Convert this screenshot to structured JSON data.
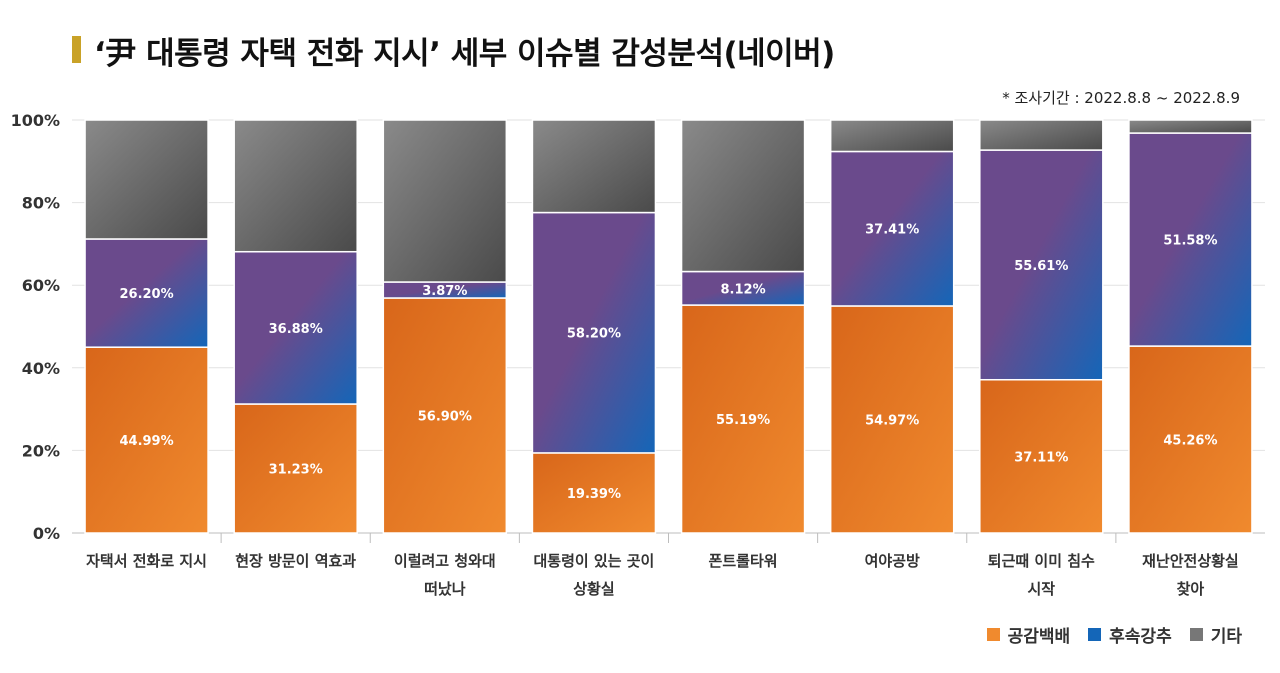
{
  "header": {
    "title": "‘尹 대통령 자택 전화 지시’ 세부 이슈별 감성분석(네이버)",
    "period": "* 조사기간 : 2022.8.8 ~ 2022.8.9"
  },
  "colors": {
    "empathy": "#F08A2E",
    "empathy_dark": "#D8661A",
    "followup_purple": "#6A4A8C",
    "followup_blue": "#1466B8",
    "other_light": "#8A8A8A",
    "other_dark": "#4A4A4A",
    "title_accent": "#C9A227"
  },
  "chart_data": {
    "type": "bar",
    "stacked": true,
    "categories": [
      [
        "자택서 전화로 지시"
      ],
      [
        "현장 방문이 역효과"
      ],
      [
        "이럴려고 청와대",
        "떠났나"
      ],
      [
        "대통령이 있는 곳이",
        "상황실"
      ],
      [
        "폰트롤타워"
      ],
      [
        "여야공방"
      ],
      [
        "퇴근때 이미 침수",
        "시작"
      ],
      [
        "재난안전상황실",
        "찾아"
      ]
    ],
    "series": [
      {
        "name": "공감백배",
        "values": [
          44.99,
          31.23,
          56.9,
          19.39,
          55.19,
          54.97,
          37.11,
          45.26
        ],
        "labels": [
          "44.99%",
          "31.23%",
          "56.90%",
          "19.39%",
          "55.19%",
          "54.97%",
          "37.11%",
          "45.26%"
        ]
      },
      {
        "name": "후속강추",
        "values": [
          26.2,
          36.88,
          3.87,
          58.2,
          8.12,
          37.41,
          55.61,
          51.58
        ],
        "labels": [
          "26.20%",
          "36.88%",
          "3.87%",
          "58.20%",
          "8.12%",
          "37.41%",
          "55.61%",
          "51.58%"
        ]
      },
      {
        "name": "기타",
        "values": [
          28.81,
          31.89,
          39.23,
          22.41,
          36.69,
          7.62,
          7.28,
          3.16
        ]
      }
    ],
    "ylim": [
      0,
      100
    ],
    "yticks": [
      "0%",
      "20%",
      "40%",
      "60%",
      "80%",
      "100%"
    ],
    "grid": true,
    "legend": "bottom-right"
  }
}
